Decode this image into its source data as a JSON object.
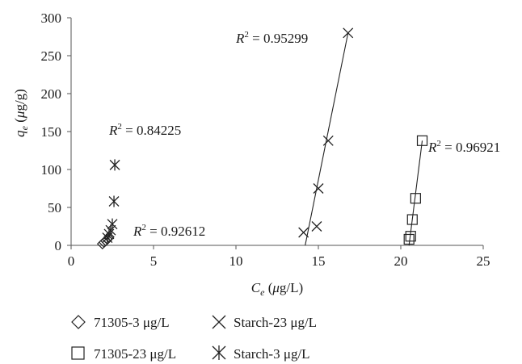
{
  "chart_data": {
    "type": "scatter",
    "title": "",
    "xlabel": {
      "symbol": "C",
      "sub": "e",
      "unit_open": " (",
      "mu": "μ",
      "unit_rest": "g/L)"
    },
    "ylabel": {
      "symbol": "q",
      "sub": "e",
      "unit_open": " (",
      "mu": "μ",
      "unit_rest": "g/g)"
    },
    "xlim": [
      0,
      25
    ],
    "ylim": [
      0,
      300
    ],
    "xticks": [
      "0",
      "5",
      "10",
      "15",
      "20",
      "25"
    ],
    "yticks": [
      "0",
      "50",
      "100",
      "150",
      "200",
      "250",
      "300"
    ],
    "grid": false,
    "legend_position": "bottom",
    "series": [
      {
        "name": "71305-3 μg/L",
        "marker": "diamond",
        "points": [
          [
            1.9,
            2
          ],
          [
            2.0,
            4
          ],
          [
            2.1,
            6
          ],
          [
            2.2,
            8
          ],
          [
            2.3,
            11
          ]
        ],
        "trend": null
      },
      {
        "name": "Starch-23 μg/L",
        "marker": "x",
        "points": [
          [
            14.1,
            17
          ],
          [
            14.9,
            25
          ],
          [
            15.0,
            75
          ],
          [
            15.6,
            138
          ],
          [
            16.8,
            280
          ]
        ],
        "trend": {
          "from": [
            14.2,
            0
          ],
          "to": [
            16.8,
            280
          ],
          "r2": "0.95299"
        }
      },
      {
        "name": "71305-23 μg/L",
        "marker": "square",
        "points": [
          [
            20.5,
            8
          ],
          [
            20.6,
            12
          ],
          [
            20.7,
            34
          ],
          [
            20.9,
            62
          ],
          [
            21.3,
            138
          ]
        ],
        "trend": {
          "from": [
            20.5,
            0
          ],
          "to": [
            21.3,
            138
          ],
          "r2": "0.96921"
        }
      },
      {
        "name": "Starch-3 μg/L",
        "marker": "asterisk",
        "points": [
          [
            2.2,
            10
          ],
          [
            2.3,
            15
          ],
          [
            2.4,
            20
          ],
          [
            2.5,
            28
          ],
          [
            2.6,
            58
          ],
          [
            2.65,
            106
          ]
        ],
        "trend": null
      }
    ],
    "annotations": [
      {
        "text": " = 0.84225"
      },
      {
        "text": " = 0.92612"
      },
      {
        "text": " = 0.95299"
      },
      {
        "text": " = 0.96921"
      }
    ],
    "r_symbol": "R",
    "r_power": "2"
  }
}
